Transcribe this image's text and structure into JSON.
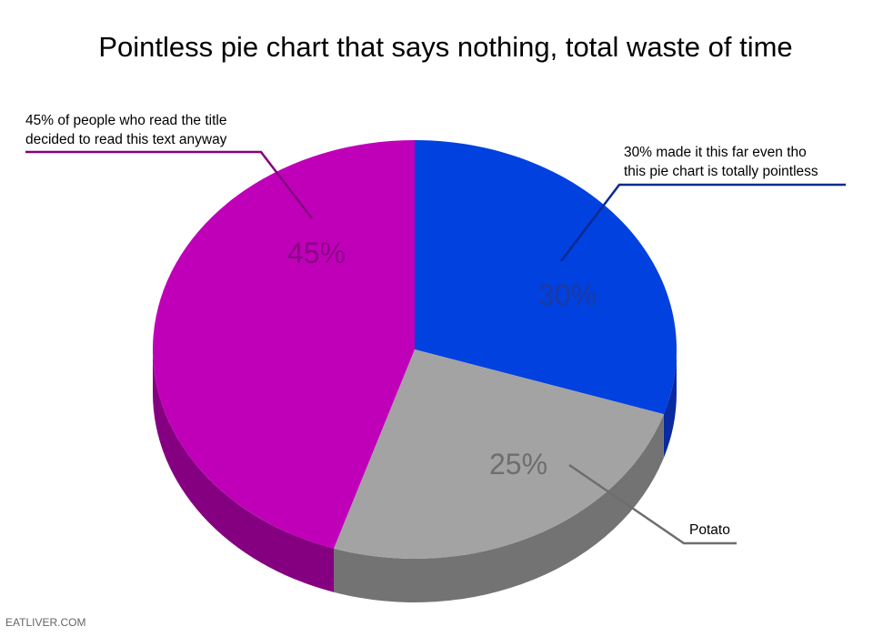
{
  "chart_data": {
    "type": "pie",
    "title": "Pointless pie chart that says nothing, total waste of time",
    "slices": [
      {
        "label": "30% made it this far even tho this pie chart is totally pointless",
        "value": 30,
        "value_label": "30%",
        "color": "#0041e0",
        "side_color": "#0a2aa0",
        "text_color": "#1c3aa0",
        "line_color": "#0a2a90"
      },
      {
        "label": "Potato",
        "value": 25,
        "value_label": "25%",
        "color": "#a3a3a3",
        "side_color": "#737373",
        "text_color": "#6e6e6e",
        "line_color": "#6e6e6e"
      },
      {
        "label": "45% of people who read the title decided to read this text anyway",
        "value": 45,
        "value_label": "45%",
        "color": "#c000b8",
        "side_color": "#850080",
        "text_color": "#8a0085",
        "line_color": "#850080"
      }
    ],
    "start": "12 o'clock, clockwise",
    "style": "3d"
  },
  "annotations": {
    "blue_line1": "30% made it this far even tho",
    "blue_line2": "this pie chart is totally pointless",
    "gray": "Potato",
    "magenta_line1": "45% of people who read the title",
    "magenta_line2": "decided to read this text anyway"
  },
  "watermark": "EATLIVER.COM"
}
